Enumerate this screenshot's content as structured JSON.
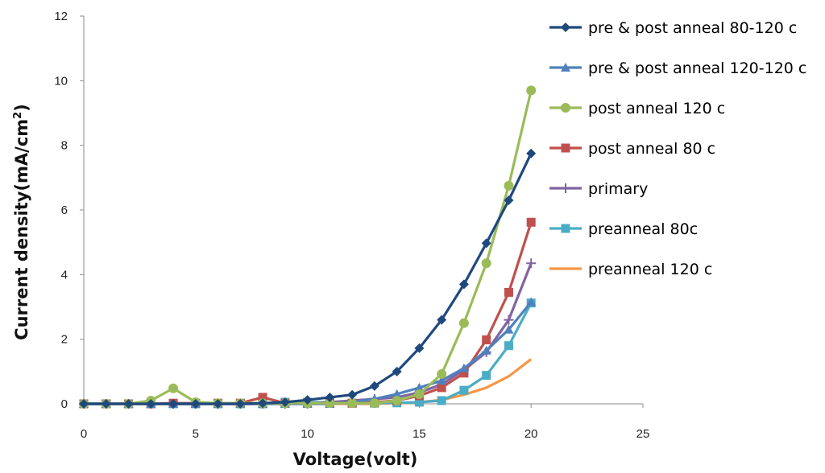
{
  "chart_data": {
    "type": "line",
    "title": "",
    "xlabel": "Voltage(volt)",
    "ylabel": "Current density(mA/cm",
    "ylabel_sup": "2",
    "ylabel_close": ")",
    "xlim": [
      0,
      25
    ],
    "ylim": [
      0,
      12
    ],
    "xticks": [
      0,
      5,
      10,
      15,
      20,
      25
    ],
    "yticks": [
      0,
      2,
      4,
      6,
      8,
      10,
      12
    ],
    "grid": false,
    "legend_position": "right",
    "x": [
      0,
      1,
      2,
      3,
      4,
      5,
      6,
      7,
      8,
      9,
      10,
      11,
      12,
      13,
      14,
      15,
      16,
      17,
      18,
      19,
      20
    ],
    "series": [
      {
        "name": "pre & post anneal 80-120 c",
        "color": "#1F497D",
        "marker": "diamond",
        "values": [
          0,
          0,
          0,
          0,
          0,
          0,
          0,
          0,
          0.02,
          0.05,
          0.12,
          0.2,
          0.28,
          0.55,
          1.0,
          1.72,
          2.6,
          3.7,
          4.97,
          6.3,
          7.75
        ]
      },
      {
        "name": "pre & post anneal 120-120 c",
        "color": "#4F81BD",
        "marker": "triangle",
        "values": [
          0,
          0,
          0,
          0,
          0,
          0,
          0,
          0,
          0,
          0,
          0,
          0,
          0.05,
          0.15,
          0.3,
          0.5,
          0.72,
          1.1,
          1.65,
          2.3,
          3.15
        ]
      },
      {
        "name": "post anneal 120 c",
        "color": "#9BBB59",
        "marker": "circle",
        "values": [
          0,
          0,
          0,
          0.1,
          0.48,
          0.05,
          0.02,
          0.02,
          0.02,
          0.02,
          0.02,
          0.02,
          0.02,
          0.02,
          0.1,
          0.3,
          0.92,
          2.5,
          4.35,
          6.75,
          9.7
        ]
      },
      {
        "name": "post anneal 80 c",
        "color": "#C0504D",
        "marker": "square",
        "values": [
          0,
          0,
          0,
          0,
          0.02,
          0.02,
          0.02,
          0.02,
          0.2,
          0.02,
          0.02,
          0.02,
          0.02,
          0.05,
          0.1,
          0.25,
          0.5,
          0.95,
          1.98,
          3.45,
          5.62
        ]
      },
      {
        "name": "primary",
        "color": "#8064A2",
        "marker": "plus",
        "values": [
          0,
          0,
          0,
          0,
          0,
          0,
          0,
          0,
          0,
          0,
          0,
          0.05,
          0.1,
          0.15,
          0.2,
          0.35,
          0.6,
          1.05,
          1.6,
          2.6,
          4.35
        ]
      },
      {
        "name": "preanneal 80c",
        "color": "#4BACC6",
        "marker": "square",
        "values": [
          0,
          0,
          0,
          0,
          0,
          0,
          0,
          0,
          0,
          0.05,
          0.05,
          0.05,
          0.02,
          0.02,
          0.03,
          0.05,
          0.1,
          0.42,
          0.88,
          1.8,
          3.12
        ]
      },
      {
        "name": "preanneal 120 c",
        "color": "#F79646",
        "marker": "none",
        "values": [
          0,
          0,
          0,
          0,
          0,
          0,
          0,
          0,
          0,
          0,
          0,
          0,
          0,
          0,
          0.02,
          0.05,
          0.12,
          0.28,
          0.5,
          0.85,
          1.38
        ]
      }
    ]
  }
}
